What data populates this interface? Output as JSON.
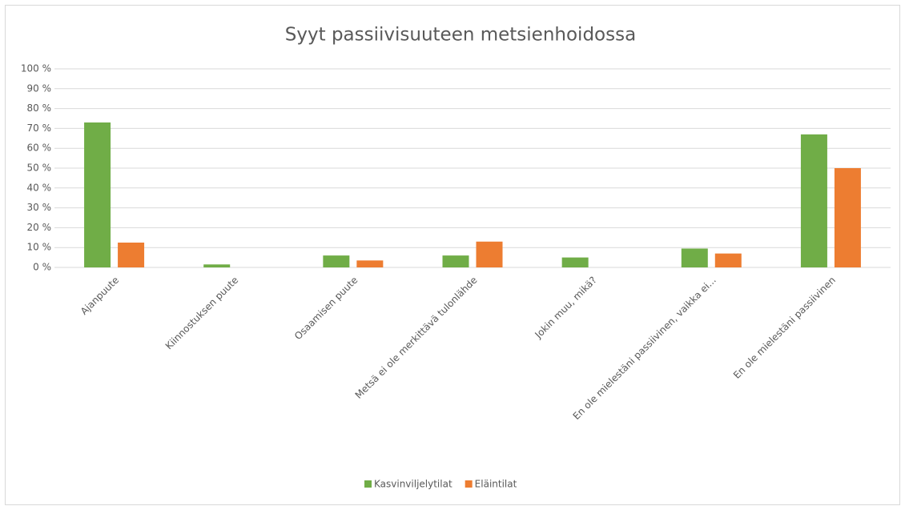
{
  "chart_data": {
    "type": "bar",
    "title": "Syyt passiivisuuteen metsienhoidossa",
    "categories": [
      "Ajanpuute",
      "Kiinnostuksen puute",
      "Osaamisen puute",
      "Metsä ei ole merkittävä tulonlähde",
      "Jokin muu, mikä?",
      "En ole mielestäni passiivinen, vaikka ei...",
      "En ole mielestäni passiivinen"
    ],
    "series": [
      {
        "name": "Kasvinviljelytilat",
        "color": "#70ad47",
        "values": [
          73,
          1.5,
          6,
          6,
          5,
          9.5,
          67
        ]
      },
      {
        "name": "Eläintilat",
        "color": "#ed7d31",
        "values": [
          12.5,
          0,
          3.5,
          13,
          0,
          7,
          50
        ]
      }
    ],
    "ylim": [
      0,
      100
    ],
    "yticks": [
      {
        "value": 0,
        "label": "0 %"
      },
      {
        "value": 10,
        "label": "10 %"
      },
      {
        "value": 20,
        "label": "20 %"
      },
      {
        "value": 30,
        "label": "30 %"
      },
      {
        "value": 40,
        "label": "40 %"
      },
      {
        "value": 50,
        "label": "50 %"
      },
      {
        "value": 60,
        "label": "60 %"
      },
      {
        "value": 70,
        "label": "70 %"
      },
      {
        "value": 80,
        "label": "80 %"
      },
      {
        "value": 90,
        "label": "90 %"
      },
      {
        "value": 100,
        "label": "100 %"
      }
    ],
    "grid": true,
    "legend": "bottom"
  }
}
